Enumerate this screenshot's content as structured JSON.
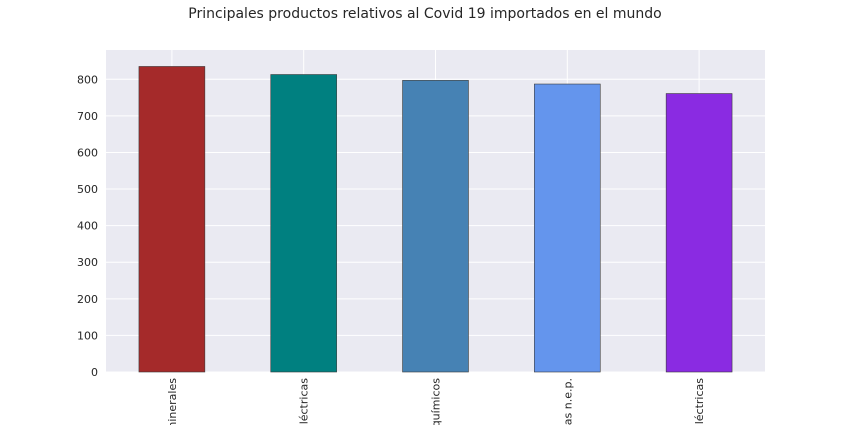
{
  "chart_data": {
    "type": "bar",
    "title": "Principales productos relativos al Covid 19 importados en el mundo",
    "categories": [
      "ninerales",
      "léctricas",
      "químicos",
      "as n.e.p.",
      "léctricas"
    ],
    "values": [
      835,
      813,
      797,
      787,
      761
    ],
    "colors": [
      "#a52a2a",
      "#008080",
      "#4682b4",
      "#6495ed",
      "#8a2be2"
    ],
    "ylim": [
      0,
      880
    ],
    "yticks": [
      0,
      100,
      200,
      300,
      400,
      500,
      600,
      700,
      800
    ],
    "xlabel": "",
    "ylabel": "",
    "grid": true,
    "background": "#eaeaf2"
  }
}
